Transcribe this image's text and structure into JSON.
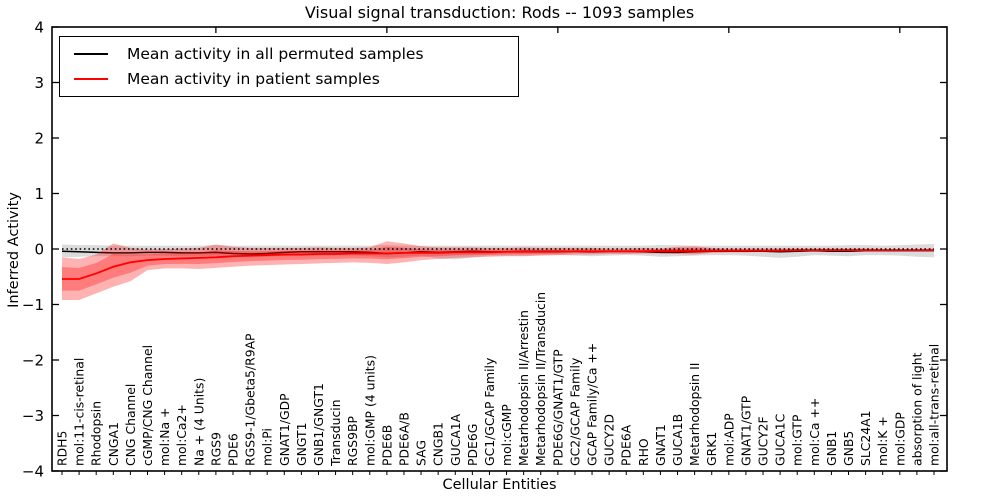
{
  "chart_data": {
    "type": "line",
    "title": "Visual signal transduction: Rods -- 1093 samples",
    "xlabel": "Cellular Entities",
    "ylabel": "Inferred Activity",
    "ylim": [
      -4,
      4
    ],
    "yticks": [
      -4,
      -3,
      -2,
      -1,
      0,
      1,
      2,
      3,
      4
    ],
    "top_axis_ticks_at_category_number": [
      10,
      20,
      30,
      40,
      50
    ],
    "grid": false,
    "legend_position": "upper left",
    "zero_reference_line": {
      "y": 0,
      "style": "dotted",
      "color": "#000000"
    },
    "categories": [
      "RDH5",
      "mol:11-cis-retinal",
      "Rhodopsin",
      "CNGA1",
      "CNG Channel",
      "cGMP/CNG Channel",
      "mol:Na +",
      "mol:Ca2+",
      "Na + (4 Units)",
      "RGS9",
      "PDE6",
      "RGS9-1/Gbeta5/R9AP",
      "mol:Pi",
      "GNAT1/GDP",
      "GNGT1",
      "GNB1/GNGT1",
      "Transducin",
      "RGS9BP",
      "mol:GMP (4 units)",
      "PDE6B",
      "PDE6A/B",
      "SAG",
      "CNGB1",
      "GUCA1A",
      "PDE6G",
      "GC1/GCAP Family",
      "mol:cGMP",
      "Metarhodopsin II/Arrestin",
      "Metarhodopsin II/Transducin",
      "PDE6G/GNAT1/GTP",
      "GC2/GCAP Family",
      "GCAP Family/Ca ++",
      "GUCY2D",
      "PDE6A",
      "RHO",
      "GNAT1",
      "GUCA1B",
      "Metarhodopsin II",
      "GRK1",
      "mol:ADP",
      "GNAT1/GTP",
      "GUCY2F",
      "GUCA1C",
      "mol:GTP",
      "mol:Ca ++",
      "GNB1",
      "GNB5",
      "SLC24A1",
      "mol:K +",
      "mol:GDP",
      "absorption of light",
      "mol:all-trans-retinal"
    ],
    "series": [
      {
        "name": "Mean activity in all permuted samples",
        "color": "#000000",
        "line_width": 1.5,
        "values": [
          -0.04,
          -0.05,
          -0.06,
          -0.07,
          -0.07,
          -0.06,
          -0.06,
          -0.07,
          -0.07,
          -0.06,
          -0.08,
          -0.09,
          -0.08,
          -0.06,
          -0.05,
          -0.05,
          -0.05,
          -0.05,
          -0.06,
          -0.08,
          -0.07,
          -0.05,
          -0.06,
          -0.05,
          -0.04,
          -0.05,
          -0.05,
          -0.04,
          -0.04,
          -0.04,
          -0.04,
          -0.05,
          -0.04,
          -0.04,
          -0.05,
          -0.06,
          -0.06,
          -0.05,
          -0.04,
          -0.04,
          -0.04,
          -0.04,
          -0.05,
          -0.04,
          -0.03,
          -0.04,
          -0.04,
          -0.03,
          -0.03,
          -0.03,
          -0.03,
          -0.03
        ],
        "band": {
          "fill": "rgba(0,0,0,0.14)",
          "upper": [
            0.08,
            0.07,
            0.07,
            0.06,
            0.06,
            0.06,
            0.06,
            0.06,
            0.06,
            0.07,
            0.06,
            0.06,
            0.06,
            0.06,
            0.06,
            0.06,
            0.06,
            0.06,
            0.06,
            0.07,
            0.06,
            0.06,
            0.06,
            0.06,
            0.06,
            0.06,
            0.06,
            0.06,
            0.06,
            0.06,
            0.06,
            0.06,
            0.06,
            0.06,
            0.06,
            0.07,
            0.07,
            0.06,
            0.06,
            0.06,
            0.06,
            0.06,
            0.06,
            0.06,
            0.06,
            0.06,
            0.07,
            0.07,
            0.06,
            0.07,
            0.08,
            0.09
          ],
          "lower": [
            -0.15,
            -0.14,
            -0.13,
            -0.13,
            -0.13,
            -0.12,
            -0.12,
            -0.13,
            -0.13,
            -0.12,
            -0.14,
            -0.15,
            -0.14,
            -0.12,
            -0.12,
            -0.12,
            -0.12,
            -0.12,
            -0.13,
            -0.15,
            -0.14,
            -0.12,
            -0.17,
            -0.19,
            -0.15,
            -0.12,
            -0.12,
            -0.12,
            -0.11,
            -0.11,
            -0.12,
            -0.13,
            -0.12,
            -0.11,
            -0.12,
            -0.14,
            -0.13,
            -0.12,
            -0.11,
            -0.11,
            -0.12,
            -0.14,
            -0.16,
            -0.14,
            -0.11,
            -0.12,
            -0.13,
            -0.11,
            -0.11,
            -0.12,
            -0.14,
            -0.15
          ]
        }
      },
      {
        "name": "Mean activity in patient samples",
        "color": "#ff0000",
        "line_width": 1.8,
        "values": [
          -0.54,
          -0.54,
          -0.44,
          -0.32,
          -0.24,
          -0.2,
          -0.18,
          -0.17,
          -0.16,
          -0.15,
          -0.13,
          -0.12,
          -0.11,
          -0.1,
          -0.1,
          -0.09,
          -0.09,
          -0.08,
          -0.08,
          -0.08,
          -0.07,
          -0.07,
          -0.07,
          -0.06,
          -0.06,
          -0.06,
          -0.05,
          -0.05,
          -0.05,
          -0.05,
          -0.04,
          -0.04,
          -0.04,
          -0.04,
          -0.04,
          -0.03,
          -0.03,
          -0.03,
          -0.03,
          -0.03,
          -0.03,
          -0.03,
          -0.03,
          -0.02,
          -0.02,
          -0.02,
          -0.02,
          -0.02,
          -0.02,
          -0.02,
          -0.02,
          -0.02
        ],
        "band": {
          "fill": "rgba(255,0,0,0.30)",
          "inner_scale": 0.55,
          "upper": [
            -0.15,
            -0.18,
            -0.1,
            0.1,
            0.02,
            -0.01,
            0.0,
            0.01,
            0.02,
            0.08,
            0.04,
            0.02,
            0.02,
            0.02,
            0.02,
            0.03,
            0.02,
            0.02,
            0.03,
            0.14,
            0.1,
            0.05,
            0.03,
            0.03,
            0.03,
            0.02,
            0.02,
            0.03,
            0.02,
            0.02,
            0.02,
            0.02,
            0.01,
            0.01,
            0.02,
            0.01,
            0.04,
            0.05,
            0.02,
            0.01,
            0.01,
            0.01,
            0.01,
            0.01,
            0.01,
            0.01,
            0.01,
            0.01,
            0.0,
            0.0,
            0.0,
            0.01
          ],
          "lower": [
            -0.92,
            -0.92,
            -0.8,
            -0.68,
            -0.58,
            -0.38,
            -0.35,
            -0.35,
            -0.36,
            -0.34,
            -0.32,
            -0.3,
            -0.29,
            -0.28,
            -0.27,
            -0.26,
            -0.25,
            -0.24,
            -0.25,
            -0.27,
            -0.24,
            -0.2,
            -0.18,
            -0.16,
            -0.15,
            -0.14,
            -0.13,
            -0.13,
            -0.12,
            -0.11,
            -0.1,
            -0.1,
            -0.09,
            -0.09,
            -0.08,
            -0.08,
            -0.09,
            -0.1,
            -0.07,
            -0.06,
            -0.06,
            -0.05,
            -0.05,
            -0.05,
            -0.04,
            -0.04,
            -0.04,
            -0.04,
            -0.04,
            -0.03,
            -0.03,
            -0.04
          ]
        }
      }
    ]
  }
}
